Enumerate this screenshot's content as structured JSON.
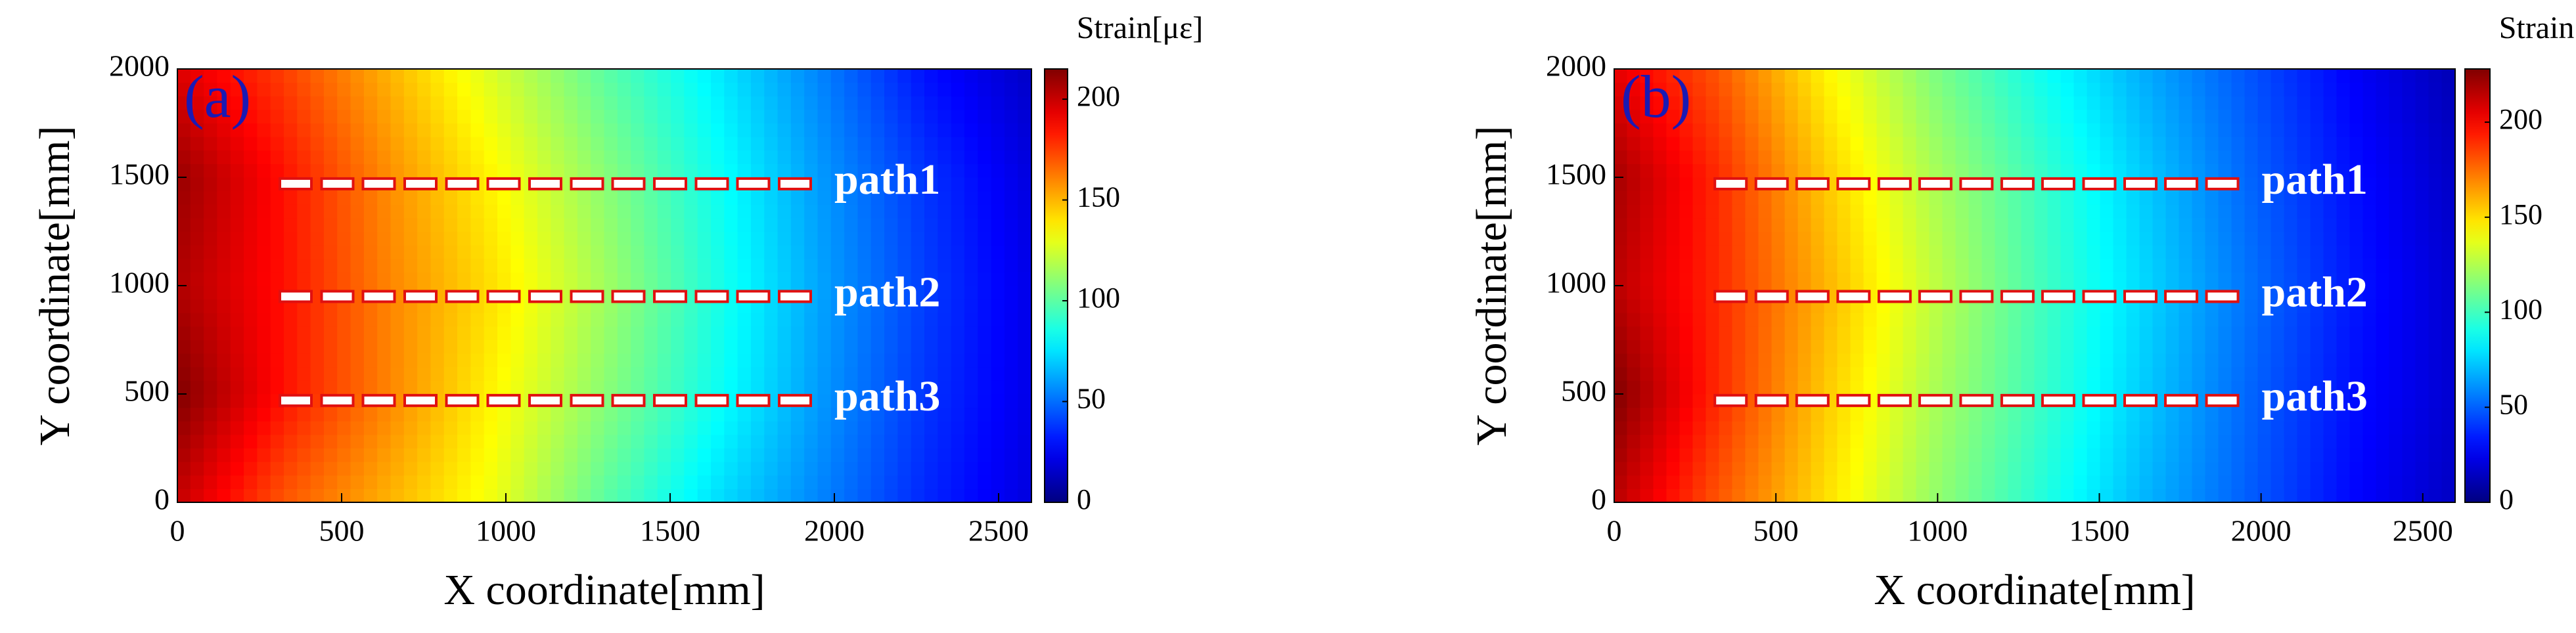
{
  "chart_data": [
    {
      "type": "contour",
      "panel_label": "(a)",
      "xlabel": "X coordinate[mm]",
      "ylabel": "Y coordinate[mm]",
      "colorbar_label": "Strain[με]",
      "colormap": "jet",
      "x": [
        0,
        325,
        650,
        975,
        1300,
        1625,
        1950,
        2275,
        2600
      ],
      "y": [
        0,
        500,
        1000,
        1500,
        2000
      ],
      "z": [
        [
          200,
          170,
          150,
          130,
          100,
          75,
          55,
          35,
          20
        ],
        [
          215,
          185,
          160,
          135,
          110,
          85,
          60,
          38,
          22
        ],
        [
          205,
          185,
          160,
          140,
          115,
          88,
          62,
          40,
          22
        ],
        [
          210,
          185,
          158,
          135,
          110,
          85,
          60,
          38,
          20
        ],
        [
          195,
          175,
          150,
          125,
          100,
          78,
          55,
          30,
          15
        ]
      ],
      "xlim": [
        0,
        2600
      ],
      "ylim": [
        0,
        2000
      ],
      "xticks": [
        0,
        500,
        1000,
        1500,
        2000,
        2500
      ],
      "yticks": [
        0,
        500,
        1000,
        1500,
        2000
      ],
      "clim": [
        0,
        215
      ],
      "cticks": [
        0,
        50,
        100,
        150,
        200
      ],
      "sensor_x": [
        360,
        487,
        613,
        740,
        867,
        993,
        1120,
        1247,
        1373,
        1500,
        1627,
        1753,
        1880
      ],
      "paths": [
        {
          "name": "path1",
          "y": 1470
        },
        {
          "name": "path2",
          "y": 950
        },
        {
          "name": "path3",
          "y": 470
        }
      ]
    },
    {
      "type": "contour",
      "panel_label": "(b)",
      "xlabel": "X coordinate[mm]",
      "ylabel": "Y coordinate[mm]",
      "colorbar_label": "Strain[με]",
      "colormap": "jet",
      "x": [
        0,
        325,
        650,
        975,
        1300,
        1625,
        1950,
        2275,
        2600
      ],
      "y": [
        0,
        500,
        1000,
        1500,
        2000
      ],
      "z": [
        [
          215,
          180,
          150,
          120,
          95,
          70,
          50,
          30,
          15
        ],
        [
          228,
          190,
          155,
          125,
          100,
          75,
          52,
          32,
          18
        ],
        [
          215,
          190,
          160,
          130,
          102,
          78,
          55,
          34,
          18
        ],
        [
          220,
          190,
          155,
          125,
          100,
          75,
          52,
          32,
          16
        ],
        [
          205,
          180,
          145,
          115,
          90,
          68,
          48,
          28,
          12
        ]
      ],
      "xlim": [
        0,
        2600
      ],
      "ylim": [
        0,
        2000
      ],
      "xticks": [
        0,
        500,
        1000,
        1500,
        2000,
        2500
      ],
      "yticks": [
        0,
        500,
        1000,
        1500,
        2000
      ],
      "clim": [
        0,
        228
      ],
      "cticks": [
        0,
        50,
        100,
        150,
        200
      ],
      "sensor_x": [
        360,
        487,
        613,
        740,
        867,
        993,
        1120,
        1247,
        1373,
        1500,
        1627,
        1753,
        1880
      ],
      "paths": [
        {
          "name": "path1",
          "y": 1470
        },
        {
          "name": "path2",
          "y": 950
        },
        {
          "name": "path3",
          "y": 470
        }
      ]
    }
  ]
}
